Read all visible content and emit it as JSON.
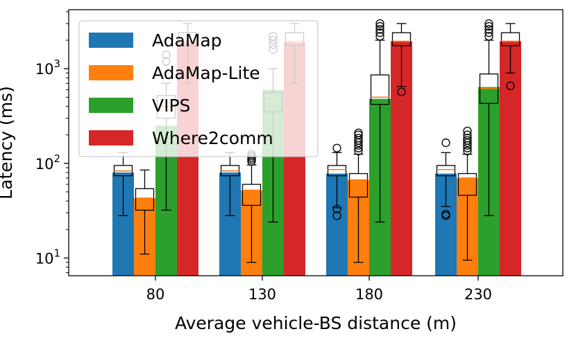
{
  "chart_data": {
    "type": "bar",
    "xlabel": "Average vehicle-BS distance (m)",
    "ylabel": "Latency (ms)",
    "yscale": "log",
    "ylim": [
      6.5,
      4200
    ],
    "y_ticks": [
      {
        "value": 10,
        "base": "10",
        "exp": "1"
      },
      {
        "value": 100,
        "base": "10",
        "exp": "2"
      },
      {
        "value": 1000,
        "base": "10",
        "exp": "3"
      }
    ],
    "categories": [
      "80",
      "130",
      "180",
      "230"
    ],
    "legend_position": "top-left",
    "series": [
      {
        "name": "AdaMap",
        "color": "#1f77b4",
        "values": [
          80,
          80,
          78,
          78
        ],
        "boxes": [
          {
            "q1": 74,
            "median": 83,
            "q3": 95,
            "whislo": 28,
            "whishi": 130,
            "fliers": []
          },
          {
            "q1": 74,
            "median": 83,
            "q3": 95,
            "whislo": 28,
            "whishi": 130,
            "fliers": []
          },
          {
            "q1": 74,
            "median": 86,
            "q3": 95,
            "whislo": 34,
            "whishi": 130,
            "fliers": [
              33,
              28,
              145
            ]
          },
          {
            "q1": 74,
            "median": 86,
            "q3": 95,
            "whislo": 35,
            "whishi": 130,
            "fliers": [
              29,
              28,
              165
            ]
          }
        ]
      },
      {
        "name": "AdaMap-Lite",
        "color": "#ff7f0e",
        "values": [
          43,
          52,
          67,
          70
        ],
        "boxes": [
          {
            "q1": 32,
            "median": 43,
            "q3": 54,
            "whislo": 11,
            "whishi": 85,
            "fliers": []
          },
          {
            "q1": 36,
            "median": 52,
            "q3": 60,
            "whislo": 9,
            "whishi": 96,
            "fliers": [
              105,
              110,
              115,
              120,
              125
            ]
          },
          {
            "q1": 44,
            "median": 67,
            "q3": 78,
            "whislo": 9,
            "whishi": 125,
            "fliers": [
              135,
              145,
              155,
              165,
              175,
              185,
              200,
              210
            ]
          },
          {
            "q1": 46,
            "median": 70,
            "q3": 78,
            "whislo": 9.5,
            "whishi": 125,
            "fliers": [
              135,
              145,
              155,
              165,
              175,
              185,
              200,
              220
            ]
          }
        ]
      },
      {
        "name": "VIPS",
        "color": "#2ca02c",
        "values": [
          250,
          600,
          480,
          640
        ],
        "boxes": [
          {
            "q1": 300,
            "median": 400,
            "q3": 520,
            "whislo": 32,
            "whishi": 700,
            "fliers": [
              1200,
              1400
            ]
          },
          {
            "q1": 350,
            "median": 450,
            "q3": 560,
            "whislo": 24,
            "whishi": 1000,
            "fliers": [
              1600,
              1800,
              2000,
              2200
            ]
          },
          {
            "q1": 420,
            "median": 500,
            "q3": 860,
            "whislo": 24,
            "whishi": 2000,
            "fliers": [
              2200,
              2400,
              2600,
              2800,
              3000
            ]
          },
          {
            "q1": 430,
            "median": 620,
            "q3": 880,
            "whislo": 28,
            "whishi": 2000,
            "fliers": [
              2200,
              2400,
              2600,
              2800,
              3000
            ]
          }
        ]
      },
      {
        "name": "Where2comm",
        "color": "#d62728",
        "values": [
          1900,
          1900,
          1950,
          1950
        ],
        "boxes": [
          {
            "q1": 1750,
            "median": 1950,
            "q3": 2400,
            "whislo": 700,
            "whishi": 3000,
            "fliers": []
          },
          {
            "q1": 1750,
            "median": 1950,
            "q3": 2400,
            "whislo": 700,
            "whishi": 3000,
            "fliers": []
          },
          {
            "q1": 1750,
            "median": 1950,
            "q3": 2400,
            "whislo": 650,
            "whishi": 3000,
            "fliers": [
              570
            ]
          },
          {
            "q1": 1750,
            "median": 1950,
            "q3": 2400,
            "whislo": 900,
            "whishi": 3000,
            "fliers": [
              660
            ]
          }
        ]
      }
    ]
  }
}
